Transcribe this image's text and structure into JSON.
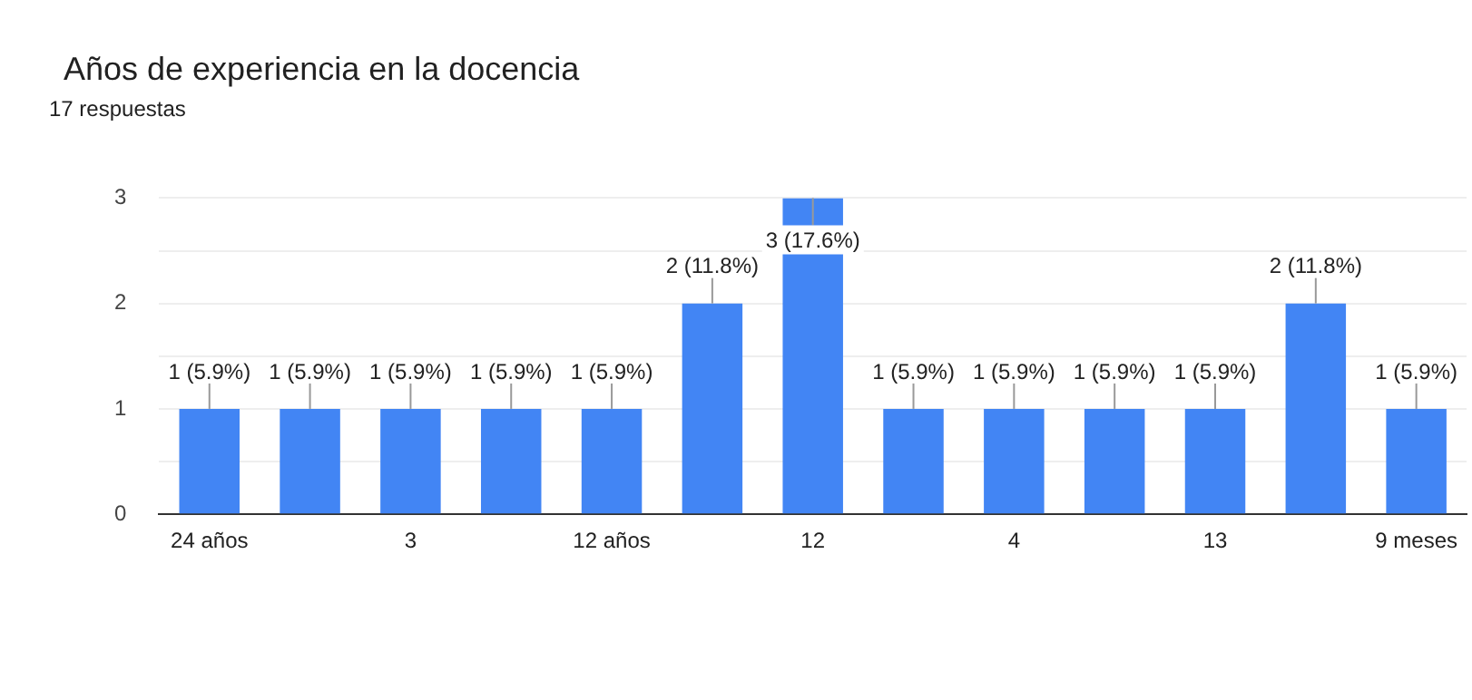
{
  "chart_data": {
    "type": "bar",
    "title": "Años de experiencia en la docencia",
    "subtitle": "17 respuestas",
    "categories": [
      "24 años",
      null,
      "3",
      null,
      "12 años",
      null,
      "12",
      null,
      "4",
      null,
      "13",
      null,
      "9 meses"
    ],
    "values": [
      1,
      1,
      1,
      1,
      1,
      2,
      3,
      1,
      1,
      1,
      1,
      2,
      1
    ],
    "value_labels": [
      "1 (5.9%)",
      "1 (5.9%)",
      "1 (5.9%)",
      "1 (5.9%)",
      "1 (5.9%)",
      "2 (11.8%)",
      "3 (17.6%)",
      "1 (5.9%)",
      "1 (5.9%)",
      "1 (5.9%)",
      "1 (5.9%)",
      "2 (11.8%)",
      "1 (5.9%)"
    ],
    "color": "#4285f4",
    "ylim": [
      0,
      3
    ],
    "yticks": [
      0,
      {
        "value": 0.5,
        "label": null
      },
      1,
      {
        "value": 1.5,
        "label": null
      },
      2,
      {
        "value": 2.5,
        "label": null
      },
      3
    ],
    "grid": "y",
    "legend": false
  }
}
